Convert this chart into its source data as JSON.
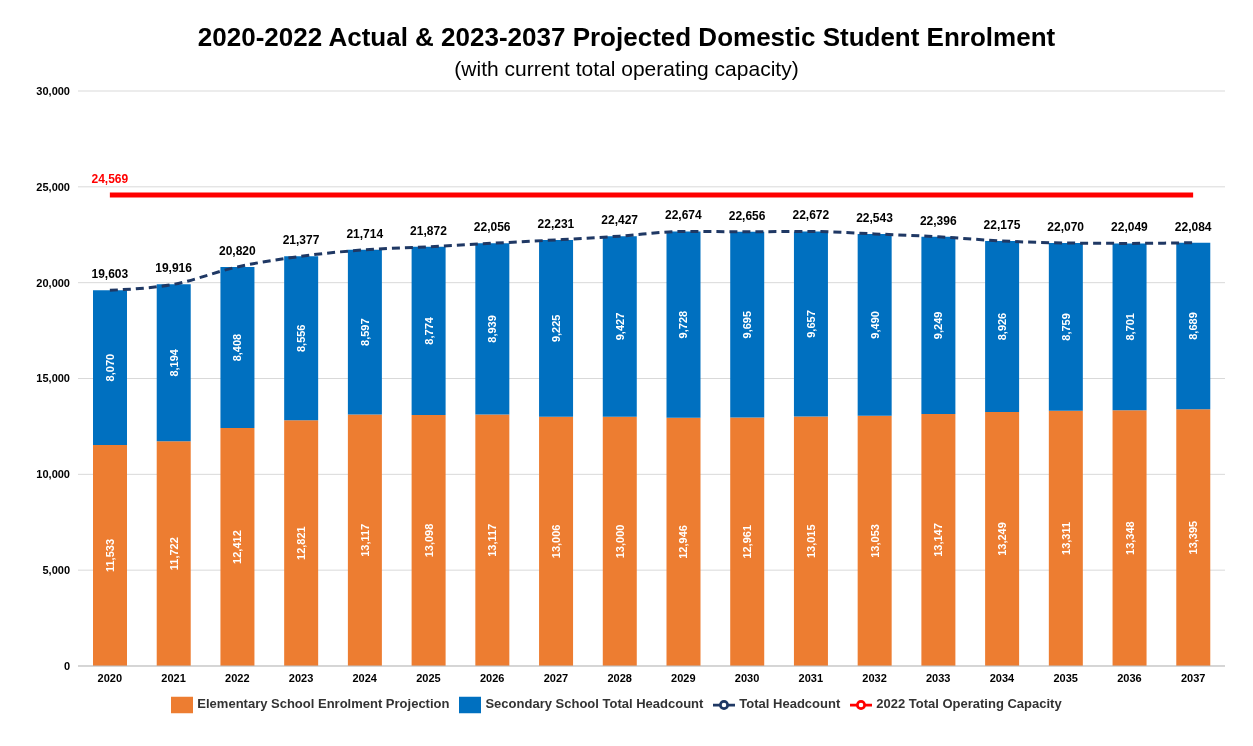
{
  "chart_data": {
    "type": "bar",
    "title": "2020-2022 Actual & 2023-2037 Projected Domestic Student Enrolment",
    "subtitle": "(with current total operating capacity)",
    "categories": [
      "2020",
      "2021",
      "2022",
      "2023",
      "2024",
      "2025",
      "2026",
      "2027",
      "2028",
      "2029",
      "2030",
      "2031",
      "2032",
      "2033",
      "2034",
      "2035",
      "2036",
      "2037"
    ],
    "stacked": true,
    "ylim": [
      0,
      30000
    ],
    "yticks": [
      {
        "value": 0,
        "label": "0"
      },
      {
        "value": 5000,
        "label": "5,000"
      },
      {
        "value": 10000,
        "label": "10,000"
      },
      {
        "value": 15000,
        "label": "15,000"
      },
      {
        "value": 20000,
        "label": "20,000"
      },
      {
        "value": 25000,
        "label": "25,000"
      },
      {
        "value": 30000,
        "label": "30,000"
      }
    ],
    "grid": "y",
    "legend": "bottom",
    "marker": "none",
    "series": [
      {
        "name": "Elementary School Enrolment Projection",
        "color": "#ed7d31",
        "values": [
          11533,
          11722,
          12412,
          12821,
          13117,
          13098,
          13117,
          13006,
          13000,
          12946,
          12961,
          13015,
          13053,
          13147,
          13249,
          13311,
          13348,
          13395
        ],
        "value_labels": [
          "11,533",
          "11,722",
          "12,412",
          "12,821",
          "13,117",
          "13,098",
          "13,117",
          "13,006",
          "13,000",
          "12,946",
          "12,961",
          "13,015",
          "13,053",
          "13,147",
          "13,249",
          "13,311",
          "13,348",
          "13,395"
        ]
      },
      {
        "name": "Secondary School Total Headcount",
        "color": "#0070c0",
        "values": [
          8070,
          8194,
          8408,
          8556,
          8597,
          8774,
          8939,
          9225,
          9427,
          9728,
          9695,
          9657,
          9490,
          9249,
          8926,
          8759,
          8701,
          8689
        ],
        "value_labels": [
          "8,070",
          "8,194",
          "8,408",
          "8,556",
          "8,597",
          "8,774",
          "8,939",
          "9,225",
          "9,427",
          "9,728",
          "9,695",
          "9,657",
          "9,490",
          "9,249",
          "8,926",
          "8,759",
          "8,701",
          "8,689"
        ]
      },
      {
        "name": "Total Headcount",
        "type": "line",
        "color": "#1f3864",
        "line_style": "dashed",
        "values": [
          19603,
          19916,
          20820,
          21377,
          21714,
          21872,
          22056,
          22231,
          22427,
          22674,
          22656,
          22672,
          22543,
          22396,
          22175,
          22070,
          22049,
          22084
        ],
        "value_labels": [
          "19,603",
          "19,916",
          "20,820",
          "21,377",
          "21,714",
          "21,872",
          "22,056",
          "22,231",
          "22,427",
          "22,674",
          "22,656",
          "22,672",
          "22,543",
          "22,396",
          "22,175",
          "22,070",
          "22,049",
          "22,084"
        ]
      },
      {
        "name": "2022 Total Operating Capacity",
        "type": "line",
        "color": "#ff0000",
        "line_style": "solid",
        "values": [
          24569,
          24569,
          24569,
          24569,
          24569,
          24569,
          24569,
          24569,
          24569,
          24569,
          24569,
          24569,
          24569,
          24569,
          24569,
          24569,
          24569,
          24569
        ],
        "value_labels": [
          "24,569",
          null,
          null,
          null,
          null,
          null,
          null,
          null,
          null,
          null,
          null,
          null,
          null,
          null,
          null,
          null,
          null,
          null
        ]
      }
    ]
  }
}
